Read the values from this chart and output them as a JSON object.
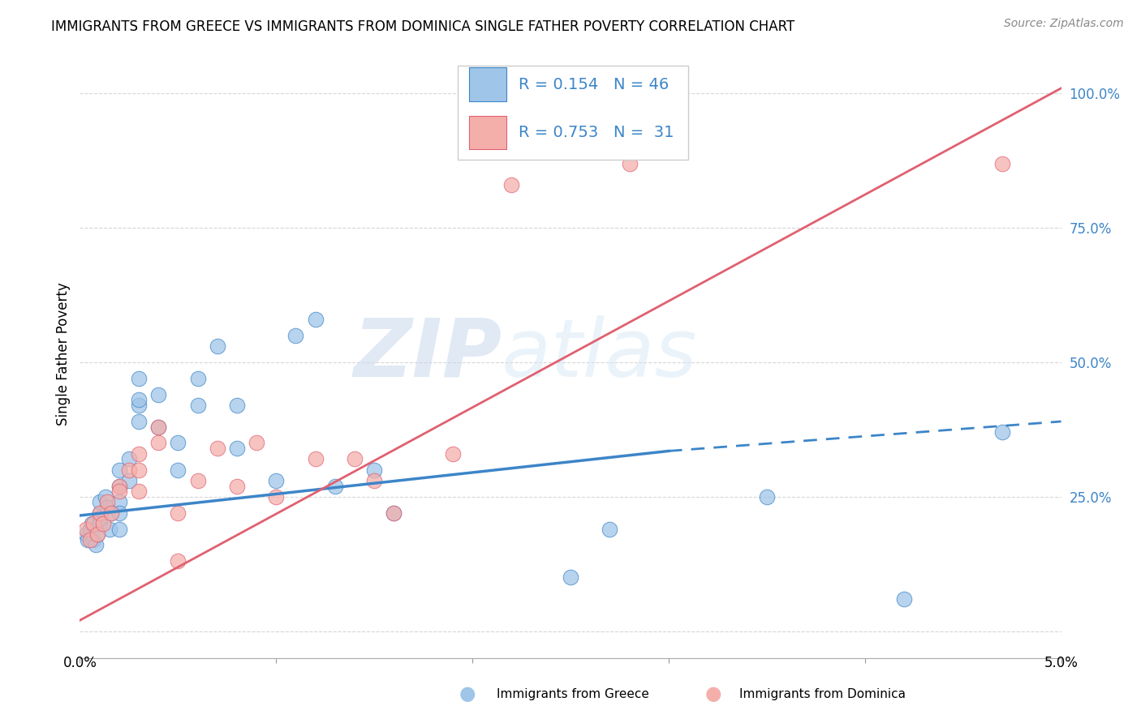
{
  "title": "IMMIGRANTS FROM GREECE VS IMMIGRANTS FROM DOMINICA SINGLE FATHER POVERTY CORRELATION CHART",
  "source": "Source: ZipAtlas.com",
  "ylabel": "Single Father Poverty",
  "legend_label1": "Immigrants from Greece",
  "legend_label2": "Immigrants from Dominica",
  "R1": 0.154,
  "N1": 46,
  "R2": 0.753,
  "N2": 31,
  "color_blue": "#9FC5E8",
  "color_pink": "#F4AFAB",
  "color_blue_line": "#3D85C8",
  "color_pink_line": "#E06070",
  "xlim": [
    0.0,
    0.05
  ],
  "ylim": [
    -0.05,
    1.08
  ],
  "yticks": [
    0.0,
    0.25,
    0.5,
    0.75,
    1.0
  ],
  "ytick_labels": [
    "",
    "25.0%",
    "50.0%",
    "75.0%",
    "100.0%"
  ],
  "greece_x": [
    0.0003,
    0.0004,
    0.0005,
    0.0006,
    0.0007,
    0.0008,
    0.0009,
    0.001,
    0.001,
    0.001,
    0.001,
    0.0013,
    0.0014,
    0.0015,
    0.0016,
    0.002,
    0.002,
    0.002,
    0.002,
    0.002,
    0.0025,
    0.0025,
    0.003,
    0.003,
    0.003,
    0.003,
    0.004,
    0.004,
    0.005,
    0.005,
    0.006,
    0.006,
    0.007,
    0.008,
    0.008,
    0.01,
    0.011,
    0.012,
    0.013,
    0.015,
    0.016,
    0.025,
    0.027,
    0.035,
    0.042,
    0.047
  ],
  "greece_y": [
    0.18,
    0.17,
    0.19,
    0.2,
    0.17,
    0.16,
    0.18,
    0.22,
    0.24,
    0.21,
    0.2,
    0.25,
    0.23,
    0.19,
    0.22,
    0.27,
    0.3,
    0.24,
    0.22,
    0.19,
    0.32,
    0.28,
    0.42,
    0.47,
    0.43,
    0.39,
    0.44,
    0.38,
    0.35,
    0.3,
    0.42,
    0.47,
    0.53,
    0.42,
    0.34,
    0.28,
    0.55,
    0.58,
    0.27,
    0.3,
    0.22,
    0.1,
    0.19,
    0.25,
    0.06,
    0.37
  ],
  "dominica_x": [
    0.0003,
    0.0005,
    0.0007,
    0.0009,
    0.001,
    0.0012,
    0.0014,
    0.0016,
    0.002,
    0.002,
    0.0025,
    0.003,
    0.003,
    0.003,
    0.004,
    0.004,
    0.005,
    0.005,
    0.006,
    0.007,
    0.008,
    0.009,
    0.01,
    0.012,
    0.014,
    0.015,
    0.016,
    0.019,
    0.022,
    0.028,
    0.047
  ],
  "dominica_y": [
    0.19,
    0.17,
    0.2,
    0.18,
    0.22,
    0.2,
    0.24,
    0.22,
    0.27,
    0.26,
    0.3,
    0.33,
    0.3,
    0.26,
    0.38,
    0.35,
    0.22,
    0.13,
    0.28,
    0.34,
    0.27,
    0.35,
    0.25,
    0.32,
    0.32,
    0.28,
    0.22,
    0.33,
    0.83,
    0.87,
    0.87
  ],
  "greece_trend_x0": 0.0,
  "greece_trend_x_split": 0.03,
  "greece_trend_x1": 0.05,
  "greece_trend_y0": 0.215,
  "greece_trend_y_split": 0.335,
  "greece_trend_y1": 0.39,
  "dominica_trend_x0": 0.0,
  "dominica_trend_x1": 0.05,
  "dominica_trend_y0": 0.02,
  "dominica_trend_y1": 1.01,
  "watermark_zip": "ZIP",
  "watermark_atlas": "atlas",
  "title_fontsize": 12,
  "label_fontsize": 12,
  "tick_fontsize": 12,
  "legend_fontsize": 14,
  "dot_size": 180
}
